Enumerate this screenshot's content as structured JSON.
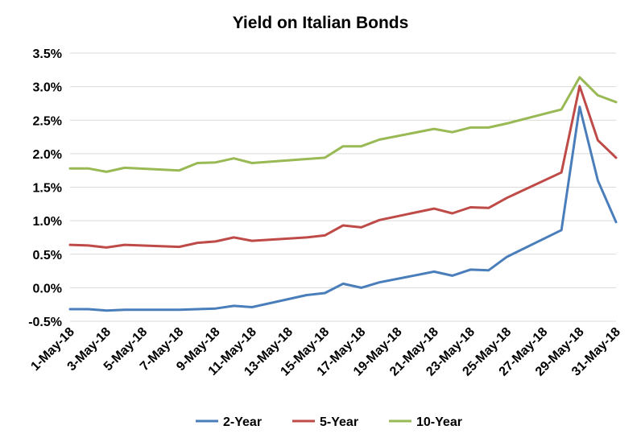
{
  "chart_data": {
    "type": "line",
    "title": "Yield on Italian Bonds",
    "xlabel": "",
    "ylabel": "",
    "x": [
      "1-May-18",
      "2-May-18",
      "3-May-18",
      "4-May-18",
      "7-May-18",
      "8-May-18",
      "9-May-18",
      "10-May-18",
      "11-May-18",
      "14-May-18",
      "15-May-18",
      "16-May-18",
      "17-May-18",
      "18-May-18",
      "21-May-18",
      "22-May-18",
      "23-May-18",
      "24-May-18",
      "25-May-18",
      "28-May-18",
      "29-May-18",
      "30-May-18",
      "31-May-18"
    ],
    "x_tick_labels": [
      "1-May-18",
      "3-May-18",
      "5-May-18",
      "7-May-18",
      "9-May-18",
      "11-May-18",
      "13-May-18",
      "15-May-18",
      "17-May-18",
      "19-May-18",
      "21-May-18",
      "23-May-18",
      "25-May-18",
      "27-May-18",
      "29-May-18",
      "31-May-18"
    ],
    "y_tick_labels": [
      "-0.5%",
      "0.0%",
      "0.5%",
      "1.0%",
      "1.5%",
      "2.0%",
      "2.5%",
      "3.0%",
      "3.5%"
    ],
    "ylim": [
      -0.5,
      3.5
    ],
    "y_unit": "%",
    "grid": true,
    "legend_position": "bottom",
    "series": [
      {
        "name": "2-Year",
        "color": "#4a7ebb",
        "points": [
          {
            "x": "1-May-18",
            "y": -0.32
          },
          {
            "x": "2-May-18",
            "y": -0.32
          },
          {
            "x": "3-May-18",
            "y": -0.34
          },
          {
            "x": "4-May-18",
            "y": -0.33
          },
          {
            "x": "7-May-18",
            "y": -0.33
          },
          {
            "x": "8-May-18",
            "y": -0.32
          },
          {
            "x": "9-May-18",
            "y": -0.31
          },
          {
            "x": "10-May-18",
            "y": -0.27
          },
          {
            "x": "11-May-18",
            "y": -0.29
          },
          {
            "x": "14-May-18",
            "y": -0.11
          },
          {
            "x": "15-May-18",
            "y": -0.08
          },
          {
            "x": "16-May-18",
            "y": 0.06
          },
          {
            "x": "17-May-18",
            "y": 0.0
          },
          {
            "x": "18-May-18",
            "y": 0.08
          },
          {
            "x": "21-May-18",
            "y": 0.24
          },
          {
            "x": "22-May-18",
            "y": 0.18
          },
          {
            "x": "23-May-18",
            "y": 0.27
          },
          {
            "x": "24-May-18",
            "y": 0.26
          },
          {
            "x": "25-May-18",
            "y": 0.46
          },
          {
            "x": "28-May-18",
            "y": 0.86
          },
          {
            "x": "29-May-18",
            "y": 2.7
          },
          {
            "x": "30-May-18",
            "y": 1.6
          },
          {
            "x": "31-May-18",
            "y": 0.98
          }
        ]
      },
      {
        "name": "5-Year",
        "color": "#be4b48",
        "points": [
          {
            "x": "1-May-18",
            "y": 0.64
          },
          {
            "x": "2-May-18",
            "y": 0.63
          },
          {
            "x": "3-May-18",
            "y": 0.6
          },
          {
            "x": "4-May-18",
            "y": 0.64
          },
          {
            "x": "7-May-18",
            "y": 0.61
          },
          {
            "x": "8-May-18",
            "y": 0.67
          },
          {
            "x": "9-May-18",
            "y": 0.69
          },
          {
            "x": "10-May-18",
            "y": 0.75
          },
          {
            "x": "11-May-18",
            "y": 0.7
          },
          {
            "x": "14-May-18",
            "y": 0.75
          },
          {
            "x": "15-May-18",
            "y": 0.78
          },
          {
            "x": "16-May-18",
            "y": 0.93
          },
          {
            "x": "17-May-18",
            "y": 0.9
          },
          {
            "x": "18-May-18",
            "y": 1.01
          },
          {
            "x": "21-May-18",
            "y": 1.18
          },
          {
            "x": "22-May-18",
            "y": 1.11
          },
          {
            "x": "23-May-18",
            "y": 1.2
          },
          {
            "x": "24-May-18",
            "y": 1.19
          },
          {
            "x": "25-May-18",
            "y": 1.34
          },
          {
            "x": "28-May-18",
            "y": 1.72
          },
          {
            "x": "29-May-18",
            "y": 3.01
          },
          {
            "x": "30-May-18",
            "y": 2.2
          },
          {
            "x": "31-May-18",
            "y": 1.94
          }
        ]
      },
      {
        "name": "10-Year",
        "color": "#98b954",
        "points": [
          {
            "x": "1-May-18",
            "y": 1.78
          },
          {
            "x": "2-May-18",
            "y": 1.78
          },
          {
            "x": "3-May-18",
            "y": 1.73
          },
          {
            "x": "4-May-18",
            "y": 1.79
          },
          {
            "x": "7-May-18",
            "y": 1.75
          },
          {
            "x": "8-May-18",
            "y": 1.86
          },
          {
            "x": "9-May-18",
            "y": 1.87
          },
          {
            "x": "10-May-18",
            "y": 1.93
          },
          {
            "x": "11-May-18",
            "y": 1.86
          },
          {
            "x": "14-May-18",
            "y": 1.92
          },
          {
            "x": "15-May-18",
            "y": 1.94
          },
          {
            "x": "16-May-18",
            "y": 2.11
          },
          {
            "x": "17-May-18",
            "y": 2.11
          },
          {
            "x": "18-May-18",
            "y": 2.21
          },
          {
            "x": "21-May-18",
            "y": 2.37
          },
          {
            "x": "22-May-18",
            "y": 2.32
          },
          {
            "x": "23-May-18",
            "y": 2.39
          },
          {
            "x": "24-May-18",
            "y": 2.39
          },
          {
            "x": "25-May-18",
            "y": 2.45
          },
          {
            "x": "28-May-18",
            "y": 2.66
          },
          {
            "x": "29-May-18",
            "y": 3.14
          },
          {
            "x": "30-May-18",
            "y": 2.87
          },
          {
            "x": "31-May-18",
            "y": 2.77
          }
        ]
      }
    ]
  }
}
